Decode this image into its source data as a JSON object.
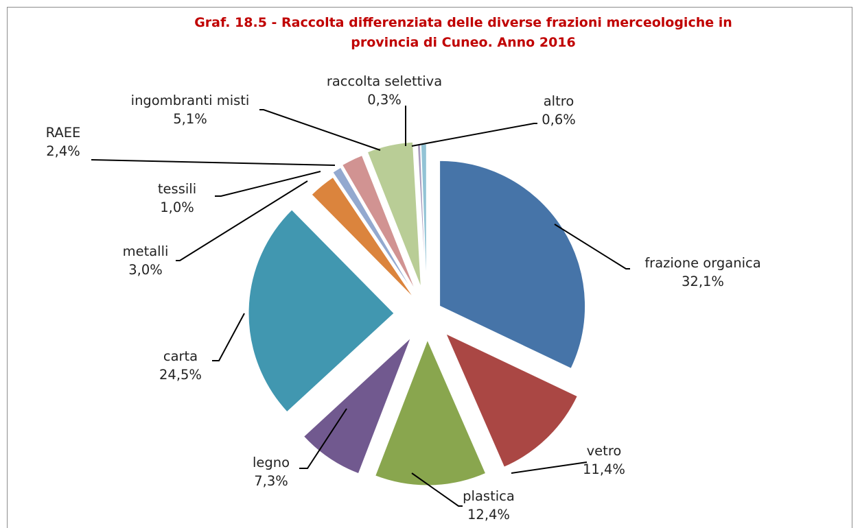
{
  "chart_data": {
    "type": "pie",
    "title": "Graf. 18.5 - Raccolta differenziata delle diverse frazioni merceologiche in provincia di Cuneo. Anno 2016",
    "title_lines": [
      "Graf. 18.5 - Raccolta differenziata delle diverse frazioni merceologiche in",
      "provincia di Cuneo. Anno 2016"
    ],
    "slices": [
      {
        "name": "frazione organica",
        "value": 32.1,
        "label": "32,1%",
        "color": "#4674a8"
      },
      {
        "name": "vetro",
        "value": 11.4,
        "label": "11,4%",
        "color": "#aa4744"
      },
      {
        "name": "plastica",
        "value": 12.4,
        "label": "12,4%",
        "color": "#89a64e"
      },
      {
        "name": "legno",
        "value": 7.3,
        "label": "7,3%",
        "color": "#71598f"
      },
      {
        "name": "carta",
        "value": 24.5,
        "label": "24,5%",
        "color": "#4197b0"
      },
      {
        "name": "metalli",
        "value": 3.0,
        "label": "3,0%",
        "color": "#db843d"
      },
      {
        "name": "tessili",
        "value": 1.0,
        "label": "1,0%",
        "color": "#93a9cf"
      },
      {
        "name": "RAEE",
        "value": 2.4,
        "label": "2,4%",
        "color": "#d19392"
      },
      {
        "name": "ingombranti misti",
        "value": 5.1,
        "label": "5,1%",
        "color": "#b9cd96"
      },
      {
        "name": "raccolta selettiva",
        "value": 0.3,
        "label": "0,3%",
        "color": "#a99bbd"
      },
      {
        "name": "altro",
        "value": 0.6,
        "label": "0,6%",
        "color": "#92c3d5"
      }
    ],
    "start_angle": "12 o'clock",
    "direction": "clockwise",
    "exploded": true,
    "legend": "none"
  }
}
